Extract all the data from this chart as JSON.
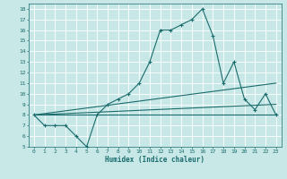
{
  "title": "",
  "xlabel": "Humidex (Indice chaleur)",
  "background_color": "#c8e8e8",
  "grid_color": "#ffffff",
  "line_color": "#1a6b6b",
  "xlim": [
    -0.5,
    23.5
  ],
  "ylim": [
    5,
    18.5
  ],
  "xticks": [
    0,
    1,
    2,
    3,
    4,
    5,
    6,
    7,
    8,
    9,
    10,
    11,
    12,
    13,
    14,
    15,
    16,
    17,
    18,
    19,
    20,
    21,
    22,
    23
  ],
  "yticks": [
    5,
    6,
    7,
    8,
    9,
    10,
    11,
    12,
    13,
    14,
    15,
    16,
    17,
    18
  ],
  "series": [
    {
      "x": [
        0,
        1,
        2,
        3,
        4,
        5,
        6,
        7,
        8,
        9,
        10,
        11,
        12,
        13,
        14,
        15,
        16,
        17,
        18,
        19,
        20,
        21,
        22,
        23
      ],
      "y": [
        8,
        7,
        7,
        7,
        6,
        5,
        8,
        9,
        9.5,
        10,
        11,
        13,
        16,
        16,
        16.5,
        17,
        18,
        15.5,
        11,
        13,
        9.5,
        8.5,
        10,
        8
      ],
      "marker": true
    },
    {
      "x": [
        0,
        23
      ],
      "y": [
        8,
        8
      ],
      "marker": false
    },
    {
      "x": [
        0,
        23
      ],
      "y": [
        8,
        9
      ],
      "marker": false
    },
    {
      "x": [
        0,
        23
      ],
      "y": [
        8,
        11
      ],
      "marker": false
    }
  ]
}
